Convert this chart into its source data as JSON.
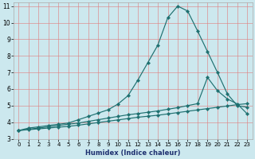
{
  "xlabel": "Humidex (Indice chaleur)",
  "bg_color": "#cce8ee",
  "line_color": "#1e7070",
  "grid_color": "#e08080",
  "xlim": [
    -0.5,
    23.5
  ],
  "ylim": [
    3,
    11.2
  ],
  "xtick_labels": [
    "0",
    "1",
    "2",
    "3",
    "4",
    "5",
    "6",
    "7",
    "8",
    "9",
    "10",
    "11",
    "12",
    "13",
    "14",
    "15",
    "16",
    "17",
    "18",
    "19",
    "20",
    "21",
    "22",
    "23"
  ],
  "yticks": [
    3,
    4,
    5,
    6,
    7,
    8,
    9,
    10,
    11
  ],
  "line1_x": [
    0,
    1,
    2,
    3,
    4,
    5,
    6,
    7,
    8,
    9,
    10,
    11,
    12,
    13,
    14,
    15,
    16,
    17,
    18,
    19,
    20,
    21,
    22,
    23
  ],
  "line1_y": [
    3.5,
    3.65,
    3.72,
    3.8,
    3.88,
    3.95,
    4.15,
    4.35,
    4.55,
    4.75,
    5.1,
    5.6,
    6.55,
    7.6,
    8.65,
    10.3,
    11.0,
    10.7,
    9.5,
    8.25,
    7.0,
    5.7,
    5.0,
    4.9
  ],
  "line2_x": [
    0,
    1,
    2,
    3,
    4,
    5,
    6,
    7,
    8,
    9,
    10,
    11,
    12,
    13,
    14,
    15,
    16,
    17,
    18,
    19,
    20,
    21,
    22,
    23
  ],
  "line2_y": [
    3.5,
    3.58,
    3.65,
    3.72,
    3.8,
    3.88,
    3.95,
    4.05,
    4.15,
    4.25,
    4.35,
    4.45,
    4.52,
    4.6,
    4.68,
    4.78,
    4.88,
    5.0,
    5.12,
    6.7,
    5.9,
    5.4,
    5.1,
    4.5
  ],
  "line3_x": [
    0,
    1,
    2,
    3,
    4,
    5,
    6,
    7,
    8,
    9,
    10,
    11,
    12,
    13,
    14,
    15,
    16,
    17,
    18,
    19,
    20,
    21,
    22,
    23
  ],
  "line3_y": [
    3.5,
    3.55,
    3.6,
    3.65,
    3.7,
    3.75,
    3.82,
    3.9,
    3.98,
    4.06,
    4.14,
    4.22,
    4.3,
    4.36,
    4.42,
    4.5,
    4.58,
    4.66,
    4.74,
    4.82,
    4.9,
    4.98,
    5.06,
    5.12
  ]
}
